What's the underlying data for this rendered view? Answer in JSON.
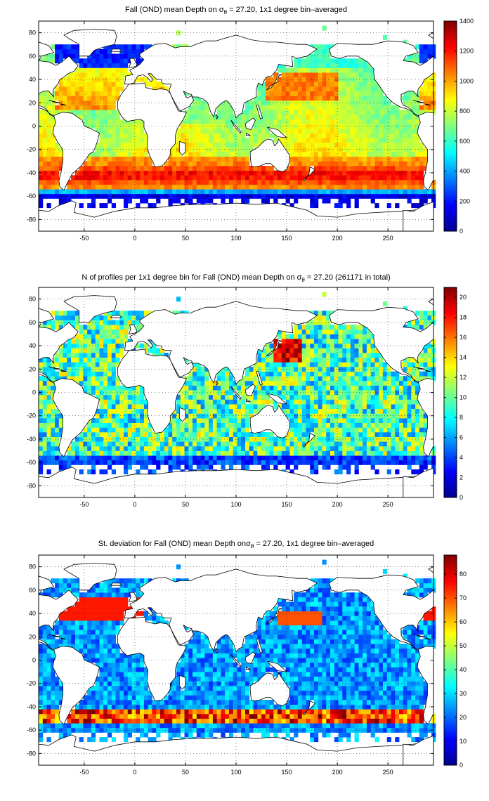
{
  "chart_data": [
    {
      "type": "heatmap",
      "title": "Fall (OND) mean Depth on σθ = 27.20, 1x1 degree bin–averaged",
      "title_parts": {
        "pre": "Fall (OND) mean Depth on σ",
        "sub": "θ",
        "post": " = 27.20, 1x1 degree bin–averaged"
      },
      "xlim": [
        -95,
        295
      ],
      "ylim": [
        -90,
        90
      ],
      "xticks": [
        -50,
        0,
        50,
        100,
        150,
        200,
        250
      ],
      "yticks": [
        -80,
        -60,
        -40,
        -20,
        0,
        20,
        40,
        60,
        80
      ],
      "colorbar": {
        "min": 0,
        "max": 1400,
        "ticks": [
          0,
          200,
          400,
          600,
          800,
          1000,
          1200,
          1400
        ]
      },
      "grid": true,
      "colormap": "jet"
    },
    {
      "type": "heatmap",
      "title": "N of profiles per 1x1 degree bin for Fall (OND) mean Depth on σθ = 27.20 (261171 in total)",
      "title_parts": {
        "pre": "N of profiles per 1x1 degree bin for Fall (OND) mean Depth on σ",
        "sub": "θ",
        "post": " = 27.20 (261171 in total)"
      },
      "xlim": [
        -95,
        295
      ],
      "ylim": [
        -90,
        90
      ],
      "xticks": [
        -50,
        0,
        50,
        100,
        150,
        200,
        250
      ],
      "yticks": [
        -80,
        -60,
        -40,
        -20,
        0,
        20,
        40,
        60,
        80
      ],
      "colorbar": {
        "min": 0,
        "max": 21,
        "ticks": [
          0,
          2,
          4,
          6,
          8,
          10,
          12,
          14,
          16,
          18,
          20
        ]
      },
      "grid": true,
      "colormap": "jet"
    },
    {
      "type": "heatmap",
      "title": "St. deviation for Fall (OND) mean Depth onσθ = 27.20, 1x1 degree bin–averaged",
      "title_parts": {
        "pre": "St. deviation for Fall (OND) mean Depth onσ",
        "sub": "θ",
        "post": " = 27.20, 1x1 degree bin–averaged"
      },
      "xlim": [
        -95,
        295
      ],
      "ylim": [
        -90,
        90
      ],
      "xticks": [
        -50,
        0,
        50,
        100,
        150,
        200,
        250
      ],
      "yticks": [
        -80,
        -60,
        -40,
        -20,
        0,
        20,
        40,
        60,
        80
      ],
      "colorbar": {
        "min": 0,
        "max": 88,
        "ticks": [
          0,
          10,
          20,
          30,
          40,
          50,
          60,
          70,
          80
        ]
      },
      "grid": true,
      "colormap": "jet"
    }
  ]
}
